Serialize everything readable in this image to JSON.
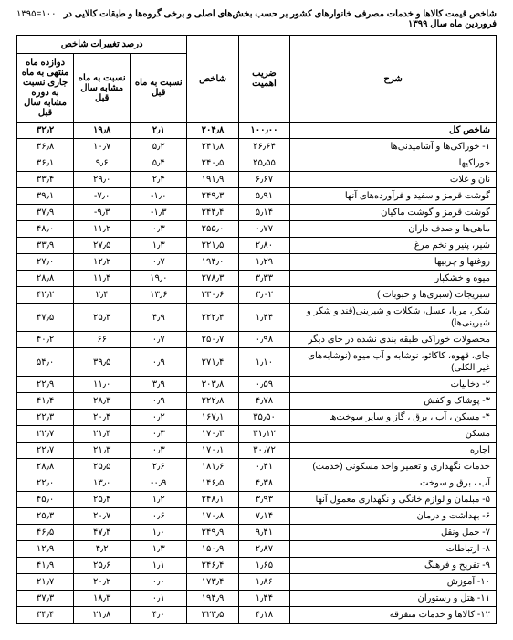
{
  "header": {
    "title": "شاخص قیمت کالاها و خدمات مصرفی خانوارهای کشور بر حسب بخش‌های اصلی و برخی گروه‌ها و طبقات کالایی در فروردین ماه سال ۱۳۹۹",
    "base_year": "۱۰۰=۱۳۹۵"
  },
  "columns": {
    "desc": "شرح",
    "coef": "ضریب اهمیت",
    "index": "شاخص",
    "pct_group": "درصد تغییرات شاخص",
    "pct_prev_month": "نسبت به ماه قبل",
    "pct_same_month_prev_year": "نسبت به ماه مشابه سال قبل",
    "pct_12m": "دوازده ماه منتهی به ماه جاری نسبت به دوره مشابه سال قبل"
  },
  "rows": [
    {
      "desc": "شاخص کل",
      "coef": "۱۰۰٫۰۰",
      "index": "۲۰۴٫۸",
      "p1": "۲٫۱",
      "p2": "۱۹٫۸",
      "p3": "۳۲٫۲",
      "bold": true
    },
    {
      "desc": "۱- خوراکی‌ها و آشامیدنی‌ها",
      "coef": "۲۶٫۶۴",
      "index": "۲۴۱٫۸",
      "p1": "۵٫۲",
      "p2": "۱۰٫۷",
      "p3": "۳۶٫۸"
    },
    {
      "desc": "خوراکیها",
      "coef": "۲۵٫۵۵",
      "index": "۲۴۰٫۵",
      "p1": "۵٫۴",
      "p2": "۹٫۶",
      "p3": "۳۶٫۱"
    },
    {
      "desc": "نان و غلات",
      "coef": "۶٫۶۷",
      "index": "۱۹۱٫۹",
      "p1": "۲٫۴",
      "p2": "۲۹٫۰",
      "p3": "۳۳٫۴"
    },
    {
      "desc": "گوشت قرمز و سفید و فرآورده‌های آنها",
      "coef": "۵٫۹۱",
      "index": "۲۴۹٫۳",
      "p1": "-۱٫۰",
      "p2": "-۷٫۰",
      "p3": "۳۹٫۱"
    },
    {
      "desc": "گوشت قرمز و گوشت ماکیان",
      "coef": "۵٫۱۴",
      "index": "۲۴۴٫۴",
      "p1": "-۱٫۳",
      "p2": "-۹٫۳",
      "p3": "۳۷٫۹"
    },
    {
      "desc": "ماهی‌ها و صدف داران",
      "coef": "۰٫۷۷",
      "index": "۲۵۵٫۰",
      "p1": "۰٫۳",
      "p2": "۱۱٫۲",
      "p3": "۴۸٫۰"
    },
    {
      "desc": "شیر، پنیر و تخم مرغ",
      "coef": "۲٫۸۰",
      "index": "۲۲۱٫۵",
      "p1": "۱٫۳",
      "p2": "۲۷٫۵",
      "p3": "۳۳٫۹"
    },
    {
      "desc": "روغنها و چربیها",
      "coef": "۱٫۲۹",
      "index": "۱۹۴٫۰",
      "p1": "۰٫۷",
      "p2": "۱۲٫۲",
      "p3": "۲۷٫۰"
    },
    {
      "desc": "میوه و خشکبار",
      "coef": "۳٫۳۳",
      "index": "۲۷۸٫۳",
      "p1": "۱۹٫۰",
      "p2": "۱۱٫۴",
      "p3": "۲۸٫۸"
    },
    {
      "desc": "سبزیجات (سبزی‌ها و حبوبات )",
      "coef": "۳٫۰۲",
      "index": "۳۳۰٫۶",
      "p1": "۱۳٫۶",
      "p2": "۲٫۴",
      "p3": "۴۲٫۲"
    },
    {
      "desc": "شکر، مربا، عسل، شکلات و شیرینی(قند و شکر و شیرینی‌ها)",
      "coef": "۱٫۴۴",
      "index": "۲۲۲٫۴",
      "p1": "۴٫۹",
      "p2": "۲۵٫۳",
      "p3": "۴۷٫۵"
    },
    {
      "desc": "محصولات خوراکی طبقه بندی نشده در جای دیگر",
      "coef": "۰٫۹۸",
      "index": "۲۵۰٫۷",
      "p1": "۰٫۷",
      "p2": "۶۶",
      "p3": "۴۰٫۲"
    },
    {
      "desc": "چای، قهوه، کاکائو، نوشابه و آب میوه (نوشابه‌های غیر الکلی)",
      "coef": "۱٫۱۰",
      "index": "۲۷۱٫۴",
      "p1": "۰٫۹",
      "p2": "۳۹٫۵",
      "p3": "۵۴٫۰"
    },
    {
      "desc": "۲- دخانیات",
      "coef": "۰٫۵۹",
      "index": "۳۰۳٫۸",
      "p1": "۳٫۹",
      "p2": "۱۱٫۰",
      "p3": "۲۲٫۹"
    },
    {
      "desc": "۳- پوشاک و کفش",
      "coef": "۴٫۷۸",
      "index": "۲۲۲٫۸",
      "p1": "۰٫۹",
      "p2": "۲۸٫۳",
      "p3": "۴۱٫۴"
    },
    {
      "desc": "۴- مسکن ، آب ، برق ، گاز و سایر سوخت‌ها",
      "coef": "۳۵٫۵۰",
      "index": "۱۶۷٫۱",
      "p1": "۰٫۲",
      "p2": "۲۰٫۴",
      "p3": "۲۲٫۳"
    },
    {
      "desc": "مسکن",
      "coef": "۳۱٫۱۲",
      "index": "۱۷۰٫۳",
      "p1": "۰٫۳",
      "p2": "۲۱٫۴",
      "p3": "۲۲٫۷"
    },
    {
      "desc": "اجاره",
      "coef": "۳۰٫۷۲",
      "index": "۱۷۰٫۱",
      "p1": "۰٫۳",
      "p2": "۲۱٫۳",
      "p3": "۲۲٫۷"
    },
    {
      "desc": "خدمات نگهداری و تعمیر واحد مسکونی (خدمت)",
      "coef": "۰٫۴۱",
      "index": "۱۸۱٫۶",
      "p1": "۲٫۶",
      "p2": "۲۵٫۵",
      "p3": "۲۸٫۸"
    },
    {
      "desc": "آب ، برق و سوخت",
      "coef": "۴٫۳۸",
      "index": "۱۴۶٫۵",
      "p1": "-۰٫۹",
      "p2": "۱۳٫۰",
      "p3": "۲۲٫۰"
    },
    {
      "desc": "۵- مبلمان و لوازم خانگی و نگهداری معمول آنها",
      "coef": "۳٫۹۳",
      "index": "۲۴۸٫۱",
      "p1": "۱٫۲",
      "p2": "۲۵٫۴",
      "p3": "۴۵٫۰"
    },
    {
      "desc": "۶- بهداشت و درمان",
      "coef": "۷٫۱۴",
      "index": "۱۷۰٫۸",
      "p1": "۰٫۶",
      "p2": "۲۰٫۷",
      "p3": "۲۵٫۳"
    },
    {
      "desc": "۷- حمل ونقل",
      "coef": "۹٫۴۱",
      "index": "۲۴۹٫۹",
      "p1": "۱٫۰",
      "p2": "۴۷٫۴",
      "p3": "۴۶٫۵"
    },
    {
      "desc": "۸- ارتباطات",
      "coef": "۲٫۸۷",
      "index": "۱۵۰٫۹",
      "p1": "۱٫۳",
      "p2": "۴٫۲",
      "p3": "۱۲٫۹"
    },
    {
      "desc": "۹- تفریح و فرهنگ",
      "coef": "۱٫۶۵",
      "index": "۲۴۶٫۴",
      "p1": "۱٫۱",
      "p2": "۲۵٫۶",
      "p3": "۴۱٫۹"
    },
    {
      "desc": "۱۰- آموزش",
      "coef": "۱٫۸۶",
      "index": "۱۷۳٫۴",
      "p1": "۰٫۰",
      "p2": "۲۰٫۲",
      "p3": "۲۱٫۷"
    },
    {
      "desc": "۱۱- هتل و رستوران",
      "coef": "۱٫۴۴",
      "index": "۱۹۴٫۹",
      "p1": "۰٫۱",
      "p2": "۱۸٫۳",
      "p3": "۳۷٫۳"
    },
    {
      "desc": "۱۲- کالاها و خدمات متفرقه",
      "coef": "۴٫۱۸",
      "index": "۲۲۳٫۵",
      "p1": "۴٫۰",
      "p2": "۲۱٫۸",
      "p3": "۳۴٫۴"
    }
  ]
}
